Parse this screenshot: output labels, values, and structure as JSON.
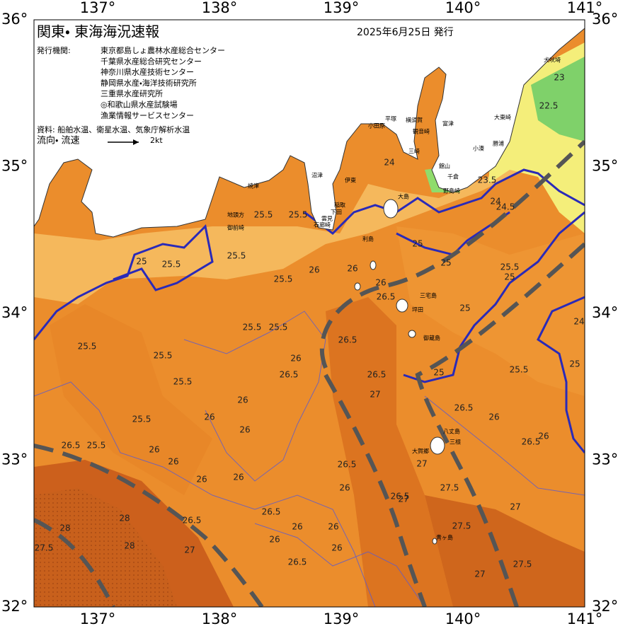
{
  "header": {
    "title": "関東・ 東海海況速報",
    "date": "2025年6月25日 発行",
    "issuer_label": "発行機関:",
    "issuers": [
      "東京都島しょ農林水産総合センター",
      "千葉県水産総合研究センター",
      "神奈川県水産技術センター",
      "静岡県水産・海洋技術研究所",
      "三重県水産研究所",
      "◎和歌山県水産試験場",
      "漁業情報サービスセンター"
    ],
    "source": "資料: 船舶水温、衛星水温、気象庁解析水温",
    "current_label": "流向・ 流速",
    "current_scale": "2kt"
  },
  "axes": {
    "lon_labels": [
      "137°",
      "138°",
      "139°",
      "140°",
      "141°"
    ],
    "lat_labels": [
      "36°",
      "35°",
      "34°",
      "33°",
      "32°"
    ]
  },
  "places": [
    "焼津",
    "地頭方",
    "御前崎",
    "沼津",
    "伊東",
    "稲取",
    "下田",
    "雲見",
    "石廊崎",
    "小田原",
    "平塚",
    "横須賀",
    "観音崎",
    "三崎",
    "富津",
    "館山",
    "千倉",
    "野島崎",
    "小湊",
    "勝浦",
    "大東崎",
    "犬吠埼",
    "大島",
    "利島",
    "三宅島",
    "坪田",
    "御蔵島",
    "八丈島",
    "三根",
    "大賀郷",
    "青ヶ島"
  ],
  "isotherm_labels": [
    "25.5",
    "25.5",
    "25.5",
    "25.5",
    "25.5",
    "25.5",
    "25.5",
    "25.5",
    "25.5",
    "25.5",
    "25.5",
    "25.5",
    "26.5",
    "26",
    "26",
    "26",
    "26",
    "26",
    "26",
    "26",
    "26",
    "26",
    "26",
    "26",
    "26",
    "26",
    "26",
    "26",
    "26.5",
    "26.5",
    "26.5",
    "26.5",
    "26.5",
    "26.5",
    "26.5",
    "26.5",
    "26.5",
    "27",
    "27",
    "27",
    "27",
    "27",
    "27",
    "27.5",
    "27.5",
    "27.5",
    "27.5",
    "28",
    "28",
    "28",
    "25",
    "25",
    "25",
    "25",
    "25",
    "24",
    "24",
    "23.5",
    "23",
    "22.5",
    "24.5",
    "25.5",
    "25.5",
    "26",
    "26.5",
    "26",
    "25",
    "25",
    "26",
    "26.5",
    "24"
  ]
}
